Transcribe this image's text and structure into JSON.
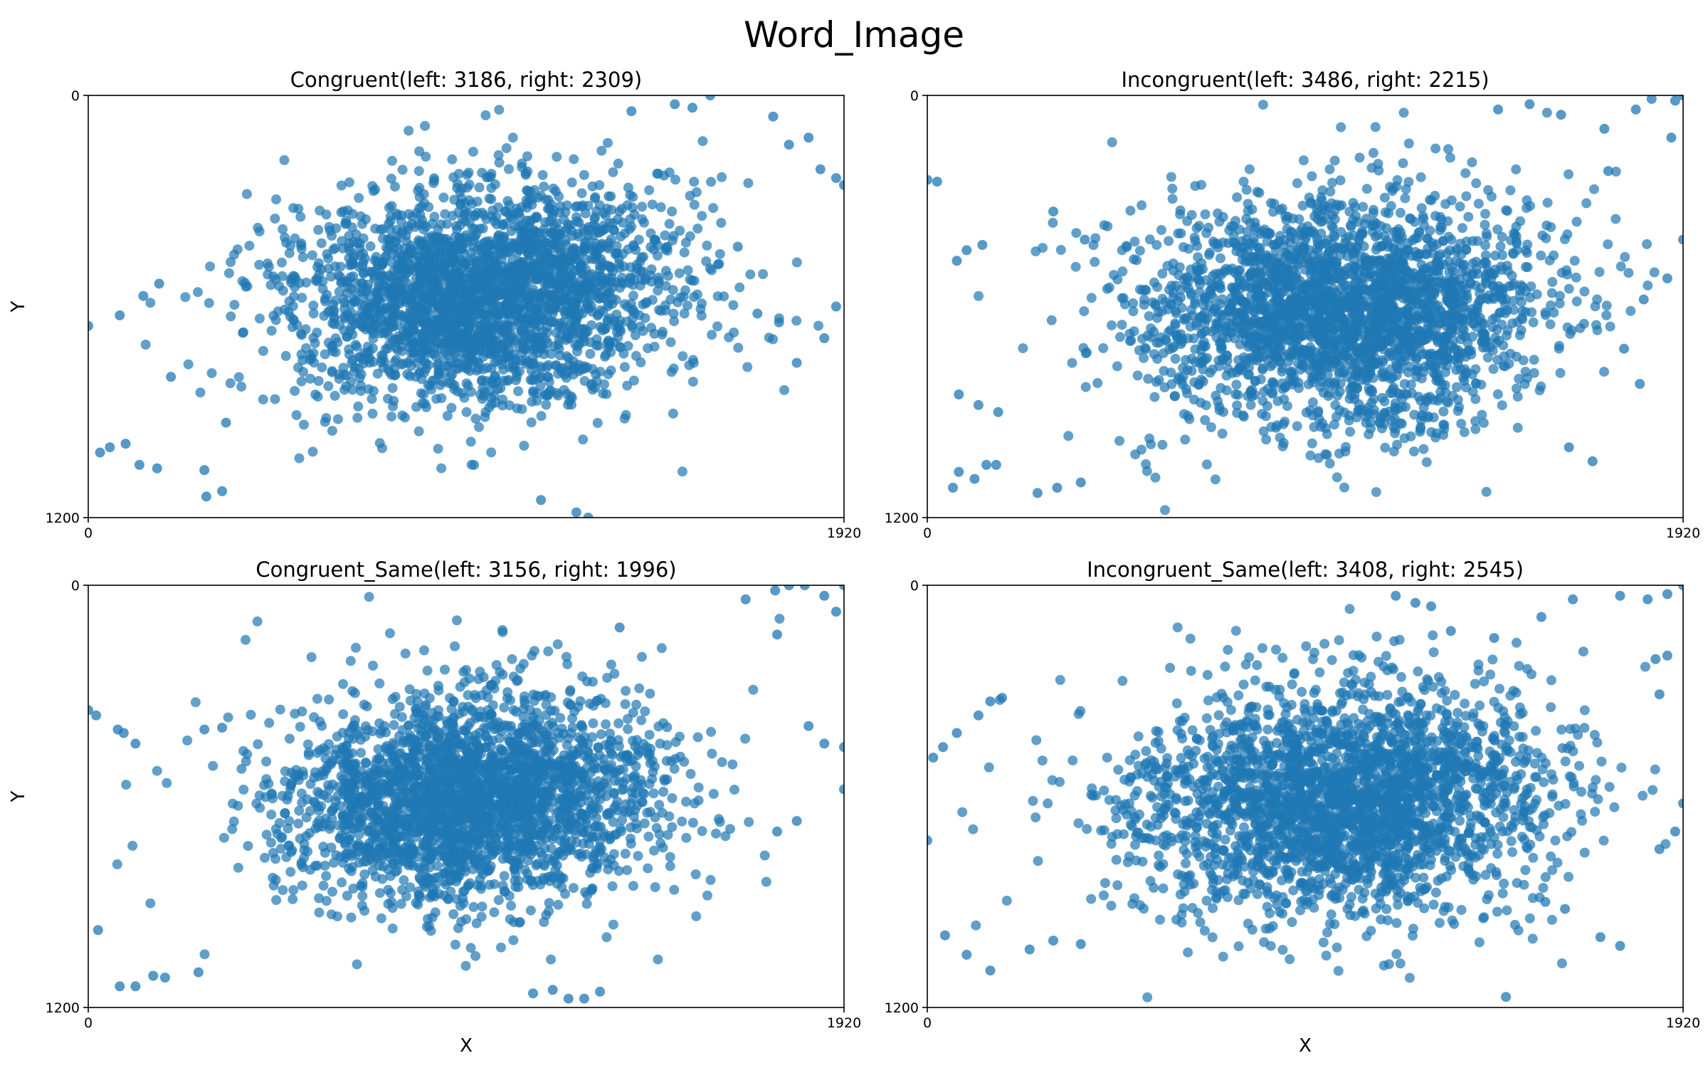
{
  "figure": {
    "title": "Word_Image"
  },
  "chart_data": [
    {
      "type": "scatter",
      "title": "Congruent(left: 3186, right: 2309)",
      "xlabel": "",
      "ylabel": "Y",
      "xlim": [
        0,
        1920
      ],
      "ylim": [
        1200,
        0
      ],
      "x_ticks": [
        "0",
        "1920"
      ],
      "y_ticks": [
        "0",
        "1200"
      ],
      "point_count": 5495,
      "color": "#1f77b4",
      "cluster": {
        "center": [
          1000,
          560
        ],
        "spread": [
          380,
          240
        ],
        "tilt_deg": -6
      },
      "outliers": [
        [
          0,
          655
        ],
        [
          30,
          1015
        ],
        [
          55,
          1000
        ],
        [
          95,
          990
        ],
        [
          130,
          1050
        ],
        [
          175,
          1060
        ],
        [
          295,
          1065
        ],
        [
          340,
          1125
        ],
        [
          300,
          1140
        ],
        [
          1150,
          1150
        ],
        [
          1240,
          1185
        ],
        [
          1270,
          1200
        ],
        [
          1380,
          45
        ],
        [
          1490,
          25
        ],
        [
          1535,
          35
        ],
        [
          1580,
          0
        ],
        [
          1740,
          60
        ],
        [
          1780,
          140
        ],
        [
          1830,
          120
        ],
        [
          1860,
          210
        ],
        [
          1900,
          235
        ],
        [
          1920,
          255
        ],
        [
          1900,
          600
        ],
        [
          1870,
          690
        ],
        [
          1800,
          760
        ],
        [
          1755,
          645
        ],
        [
          1700,
          620
        ],
        [
          1650,
          430
        ],
        [
          1600,
          480
        ],
        [
          80,
          625
        ],
        [
          140,
          570
        ],
        [
          180,
          535
        ],
        [
          210,
          800
        ],
        [
          350,
          930
        ]
      ]
    },
    {
      "type": "scatter",
      "title": "Incongruent(left: 3486, right: 2215)",
      "xlabel": "",
      "ylabel": "",
      "xlim": [
        0,
        1920
      ],
      "ylim": [
        1200,
        0
      ],
      "x_ticks": [
        "0",
        "1920"
      ],
      "y_ticks": [
        "0",
        "1200"
      ],
      "point_count": 5701,
      "color": "#1f77b4",
      "cluster": {
        "center": [
          1050,
          620
        ],
        "spread": [
          400,
          250
        ],
        "tilt_deg": -4
      },
      "outliers": [
        [
          0,
          240
        ],
        [
          25,
          245
        ],
        [
          65,
          1115
        ],
        [
          80,
          1070
        ],
        [
          120,
          1090
        ],
        [
          150,
          1050
        ],
        [
          175,
          1050
        ],
        [
          280,
          1130
        ],
        [
          330,
          1115
        ],
        [
          390,
          1100
        ],
        [
          100,
          440
        ],
        [
          75,
          470
        ],
        [
          140,
          425
        ],
        [
          80,
          850
        ],
        [
          130,
          880
        ],
        [
          1450,
          40
        ],
        [
          1530,
          25
        ],
        [
          1610,
          55
        ],
        [
          1720,
          95
        ],
        [
          1800,
          40
        ],
        [
          1840,
          10
        ],
        [
          1900,
          15
        ],
        [
          1920,
          0
        ],
        [
          1890,
          120
        ],
        [
          1730,
          215
        ],
        [
          1920,
          410
        ],
        [
          1880,
          520
        ],
        [
          1820,
          580
        ],
        [
          1770,
          720
        ],
        [
          1810,
          820
        ],
        [
          1690,
          1040
        ],
        [
          1630,
          1000
        ],
        [
          400,
          410
        ],
        [
          320,
          330
        ],
        [
          180,
          900
        ]
      ]
    },
    {
      "type": "scatter",
      "title": "Congruent_Same(left: 3156, right: 1996)",
      "xlabel": "X",
      "ylabel": "Y",
      "xlim": [
        0,
        1920
      ],
      "ylim": [
        1200,
        0
      ],
      "x_ticks": [
        "0",
        "1920"
      ],
      "y_ticks": [
        "0",
        "1200"
      ],
      "point_count": 5152,
      "color": "#1f77b4",
      "cluster": {
        "center": [
          980,
          600
        ],
        "spread": [
          380,
          230
        ],
        "tilt_deg": -5
      },
      "outliers": [
        [
          0,
          355
        ],
        [
          20,
          370
        ],
        [
          75,
          410
        ],
        [
          90,
          420
        ],
        [
          120,
          450
        ],
        [
          25,
          980
        ],
        [
          80,
          1140
        ],
        [
          120,
          1140
        ],
        [
          165,
          1110
        ],
        [
          195,
          1115
        ],
        [
          280,
          1100
        ],
        [
          1130,
          1160
        ],
        [
          1180,
          1150
        ],
        [
          1260,
          1175
        ],
        [
          1220,
          1175
        ],
        [
          1300,
          1155
        ],
        [
          1670,
          40
        ],
        [
          1745,
          15
        ],
        [
          1780,
          0
        ],
        [
          1820,
          0
        ],
        [
          1870,
          30
        ],
        [
          1900,
          75
        ],
        [
          1920,
          0
        ],
        [
          1830,
          400
        ],
        [
          1870,
          450
        ],
        [
          1920,
          460
        ],
        [
          1920,
          580
        ],
        [
          1800,
          670
        ],
        [
          1750,
          700
        ],
        [
          295,
          410
        ],
        [
          340,
          405
        ],
        [
          1750,
          140
        ],
        [
          1350,
          120
        ]
      ]
    },
    {
      "type": "scatter",
      "title": "Incongruent_Same(left: 3408, right: 2545)",
      "xlabel": "X",
      "ylabel": "",
      "xlim": [
        0,
        1920
      ],
      "ylim": [
        1200,
        0
      ],
      "x_ticks": [
        "0",
        "1920"
      ],
      "y_ticks": [
        "0",
        "1200"
      ],
      "point_count": 5953,
      "color": "#1f77b4",
      "cluster": {
        "center": [
          1060,
          610
        ],
        "spread": [
          420,
          250
        ],
        "tilt_deg": -5
      },
      "outliers": [
        [
          0,
          725
        ],
        [
          15,
          490
        ],
        [
          40,
          460
        ],
        [
          75,
          420
        ],
        [
          130,
          370
        ],
        [
          160,
          330
        ],
        [
          190,
          320
        ],
        [
          45,
          995
        ],
        [
          100,
          1050
        ],
        [
          160,
          1095
        ],
        [
          260,
          1035
        ],
        [
          320,
          1010
        ],
        [
          390,
          1020
        ],
        [
          1190,
          30
        ],
        [
          1240,
          50
        ],
        [
          1280,
          60
        ],
        [
          1330,
          130
        ],
        [
          1440,
          150
        ],
        [
          1560,
          90
        ],
        [
          1640,
          40
        ],
        [
          1760,
          30
        ],
        [
          1830,
          40
        ],
        [
          1880,
          25
        ],
        [
          1920,
          0
        ],
        [
          1880,
          200
        ],
        [
          1850,
          210
        ],
        [
          1860,
          310
        ],
        [
          1920,
          620
        ],
        [
          1900,
          700
        ],
        [
          1860,
          750
        ],
        [
          1470,
          1170
        ],
        [
          1570,
          900
        ],
        [
          1620,
          920
        ],
        [
          1710,
          1000
        ],
        [
          1760,
          1025
        ]
      ]
    }
  ]
}
